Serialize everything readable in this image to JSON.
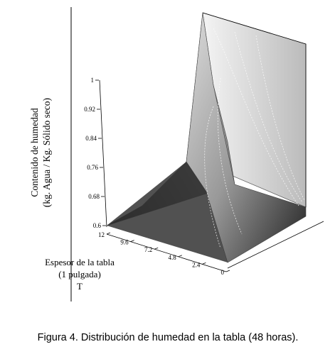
{
  "chart_data": {
    "type": "surface3d",
    "zlabel": [
      "Contenido de humedad",
      "(kg. Agua / Kg. Sólido seco)"
    ],
    "zlim": [
      0.6,
      1
    ],
    "zticks": [
      0.6,
      0.68,
      0.76,
      0.84,
      0.92,
      1
    ],
    "xlabel": [
      "Espesor de la tabla",
      "(1 pulgada)",
      "T"
    ],
    "xlim": [
      0,
      12
    ],
    "xticks": [
      12,
      9.6,
      7.2,
      4.8,
      2.4,
      0
    ],
    "caption": "Figura 4. Distribución de humedad en la tabla (48 horas)."
  }
}
